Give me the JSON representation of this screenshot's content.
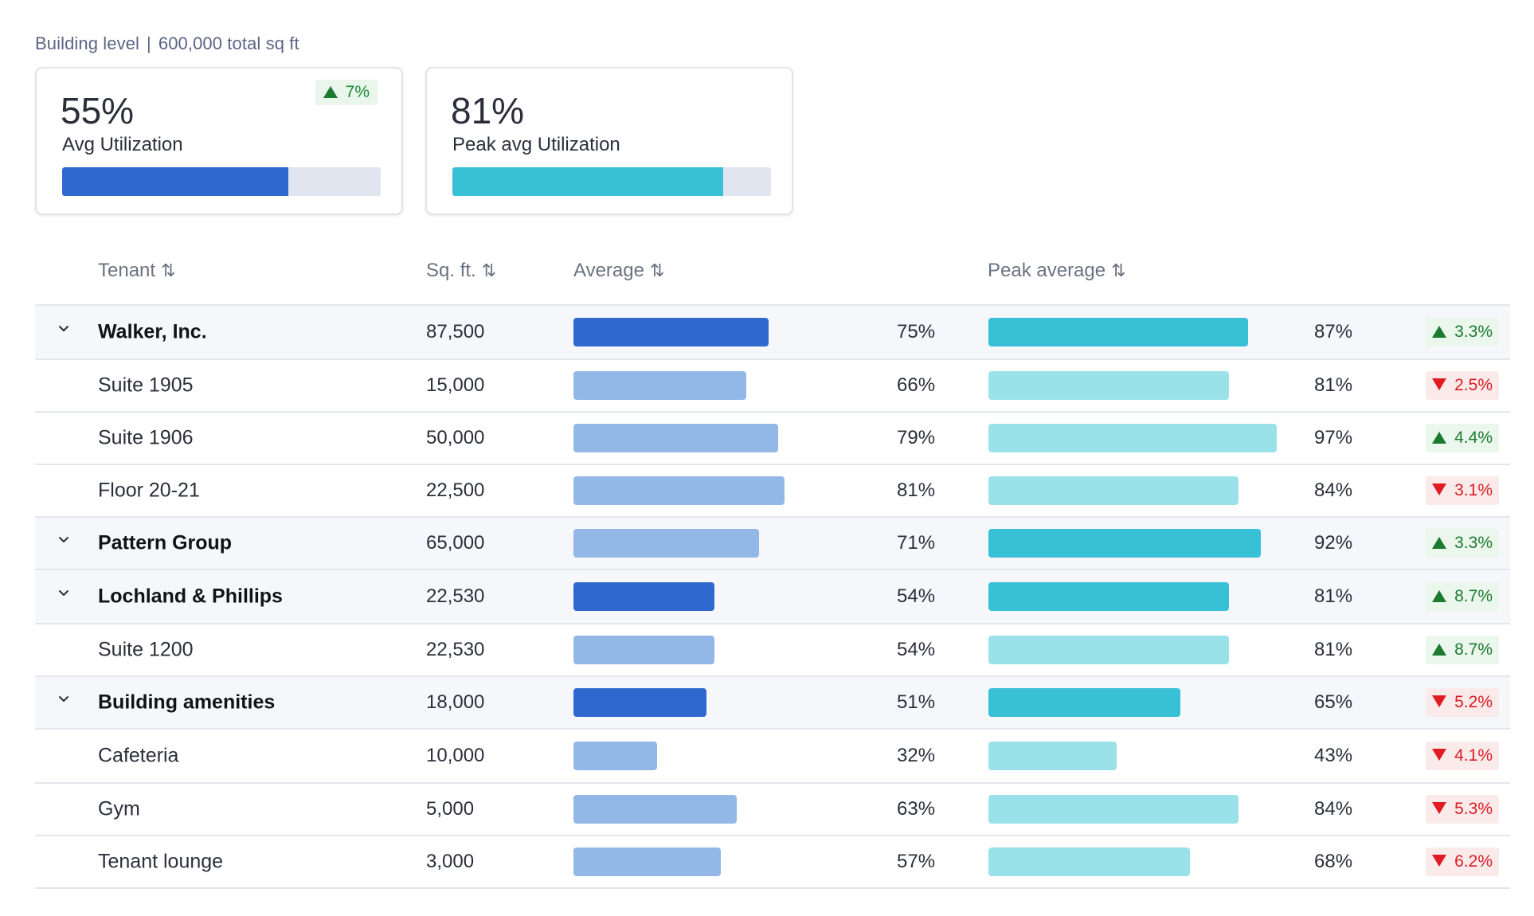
{
  "header": {
    "level": "Building level",
    "separator": "|",
    "total": "600,000 total sq ft"
  },
  "cards": [
    {
      "value": "55%",
      "label": "Avg Utilization",
      "progress": 0.71,
      "color": "#2f69cf",
      "badge": "7%",
      "badge_direction": "up"
    },
    {
      "value": "81%",
      "label": "Peak avg Utilization",
      "progress": 0.85,
      "color": "#38c0d6",
      "badge": "",
      "badge_direction": ""
    }
  ],
  "colors": {
    "avg_strong": "#2f69cf",
    "avg_light": "#93b8e8",
    "peak_strong": "#38c0d6",
    "peak_light": "#9be1ea"
  },
  "table": {
    "columns": [
      {
        "label": "Tenant",
        "sort_icon": "⇅"
      },
      {
        "label": "Sq. ft.",
        "sort_icon": "⇅"
      },
      {
        "label": "Average",
        "sort_icon": "⇅"
      },
      {
        "label": "Peak average",
        "sort_icon": "⇅"
      }
    ],
    "rows": [
      {
        "name": "Walker, Inc.",
        "type": "parent",
        "sqft": "87,500",
        "avg": "75%",
        "avg_bar": 0.61,
        "avg_strong": true,
        "peak": "87%",
        "peak_bar": 0.81,
        "peak_strong": true,
        "delta": "3.3%",
        "delta_dir": "up"
      },
      {
        "name": "Suite 1905",
        "type": "child",
        "sqft": "15,000",
        "avg": "66%",
        "avg_bar": 0.54,
        "avg_strong": false,
        "peak": "81%",
        "peak_bar": 0.75,
        "peak_strong": false,
        "delta": "2.5%",
        "delta_dir": "down"
      },
      {
        "name": "Suite 1906",
        "type": "child",
        "sqft": "50,000",
        "avg": "79%",
        "avg_bar": 0.64,
        "avg_strong": false,
        "peak": "97%",
        "peak_bar": 0.9,
        "peak_strong": false,
        "delta": "4.4%",
        "delta_dir": "up"
      },
      {
        "name": "Floor 20-21",
        "type": "child",
        "sqft": "22,500",
        "avg": "81%",
        "avg_bar": 0.66,
        "avg_strong": false,
        "peak": "84%",
        "peak_bar": 0.78,
        "peak_strong": false,
        "delta": "3.1%",
        "delta_dir": "down"
      },
      {
        "name": "Pattern Group",
        "type": "parent",
        "sqft": "65,000",
        "avg": "71%",
        "avg_bar": 0.58,
        "avg_strong": false,
        "peak": "92%",
        "peak_bar": 0.85,
        "peak_strong": true,
        "delta": "3.3%",
        "delta_dir": "up"
      },
      {
        "name": "Lochland & Phillips",
        "type": "parent",
        "sqft": "22,530",
        "avg": "54%",
        "avg_bar": 0.44,
        "avg_strong": true,
        "peak": "81%",
        "peak_bar": 0.75,
        "peak_strong": true,
        "delta": "8.7%",
        "delta_dir": "up"
      },
      {
        "name": "Suite 1200",
        "type": "child",
        "sqft": "22,530",
        "avg": "54%",
        "avg_bar": 0.44,
        "avg_strong": false,
        "peak": "81%",
        "peak_bar": 0.75,
        "peak_strong": false,
        "delta": "8.7%",
        "delta_dir": "up"
      },
      {
        "name": "Building amenities",
        "type": "parent",
        "sqft": "18,000",
        "avg": "51%",
        "avg_bar": 0.415,
        "avg_strong": true,
        "peak": "65%",
        "peak_bar": 0.6,
        "peak_strong": true,
        "delta": "5.2%",
        "delta_dir": "down"
      },
      {
        "name": "Cafeteria",
        "type": "child",
        "sqft": "10,000",
        "avg": "32%",
        "avg_bar": 0.26,
        "avg_strong": false,
        "peak": "43%",
        "peak_bar": 0.4,
        "peak_strong": false,
        "delta": "4.1%",
        "delta_dir": "down"
      },
      {
        "name": "Gym",
        "type": "child",
        "sqft": "5,000",
        "avg": "63%",
        "avg_bar": 0.51,
        "avg_strong": false,
        "peak": "84%",
        "peak_bar": 0.78,
        "peak_strong": false,
        "delta": "5.3%",
        "delta_dir": "down"
      },
      {
        "name": "Tenant lounge",
        "type": "child",
        "sqft": "3,000",
        "avg": "57%",
        "avg_bar": 0.46,
        "avg_strong": false,
        "peak": "68%",
        "peak_bar": 0.63,
        "peak_strong": false,
        "delta": "6.2%",
        "delta_dir": "down"
      }
    ]
  }
}
